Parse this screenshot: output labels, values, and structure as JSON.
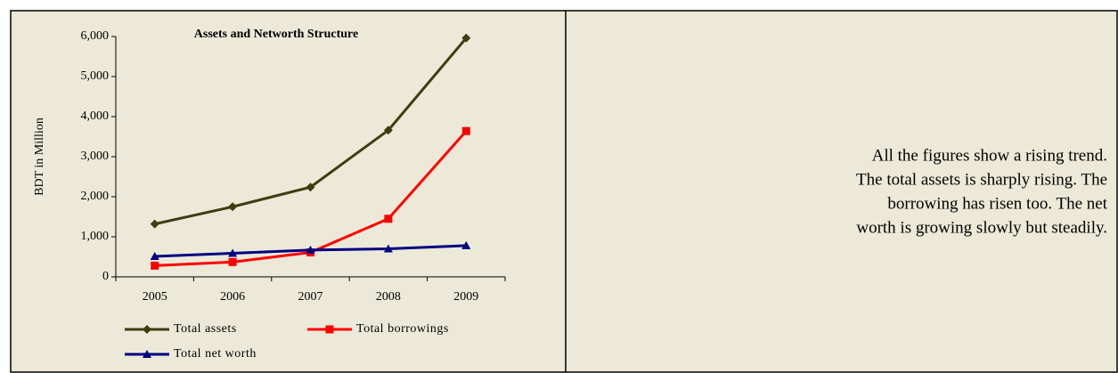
{
  "chart_data": {
    "type": "line",
    "title": "Assets and Networth Structure",
    "ylabel": "BDT in Million",
    "categories": [
      "2005",
      "2006",
      "2007",
      "2008",
      "2009"
    ],
    "series": [
      {
        "name": "Total assets",
        "color": "#3d3d0f",
        "marker": "diamond",
        "values": [
          1320,
          1750,
          2240,
          3660,
          5960
        ]
      },
      {
        "name": "Total borrowings",
        "color": "#ff0000",
        "marker": "square",
        "values": [
          280,
          370,
          610,
          1450,
          3640
        ]
      },
      {
        "name": "Total net worth",
        "color": "#000080",
        "marker": "triangle",
        "values": [
          510,
          590,
          670,
          700,
          780
        ]
      }
    ],
    "ylim": [
      0,
      6000
    ],
    "yticks": [
      0,
      {
        "value": 1000,
        "label": "1,000"
      },
      {
        "value": 2000,
        "label": "2,000"
      },
      {
        "value": 3000,
        "label": "3,000"
      },
      {
        "value": 4000,
        "label": "4,000"
      },
      {
        "value": 5000,
        "label": "5,000"
      },
      {
        "value": 6000,
        "label": "6,000"
      }
    ]
  },
  "text": {
    "lines": [
      "All the figures show a rising trend.",
      "The total assets is sharply rising. The",
      "borrowing has risen too. The net",
      "worth is growing slowly but steadily."
    ]
  }
}
